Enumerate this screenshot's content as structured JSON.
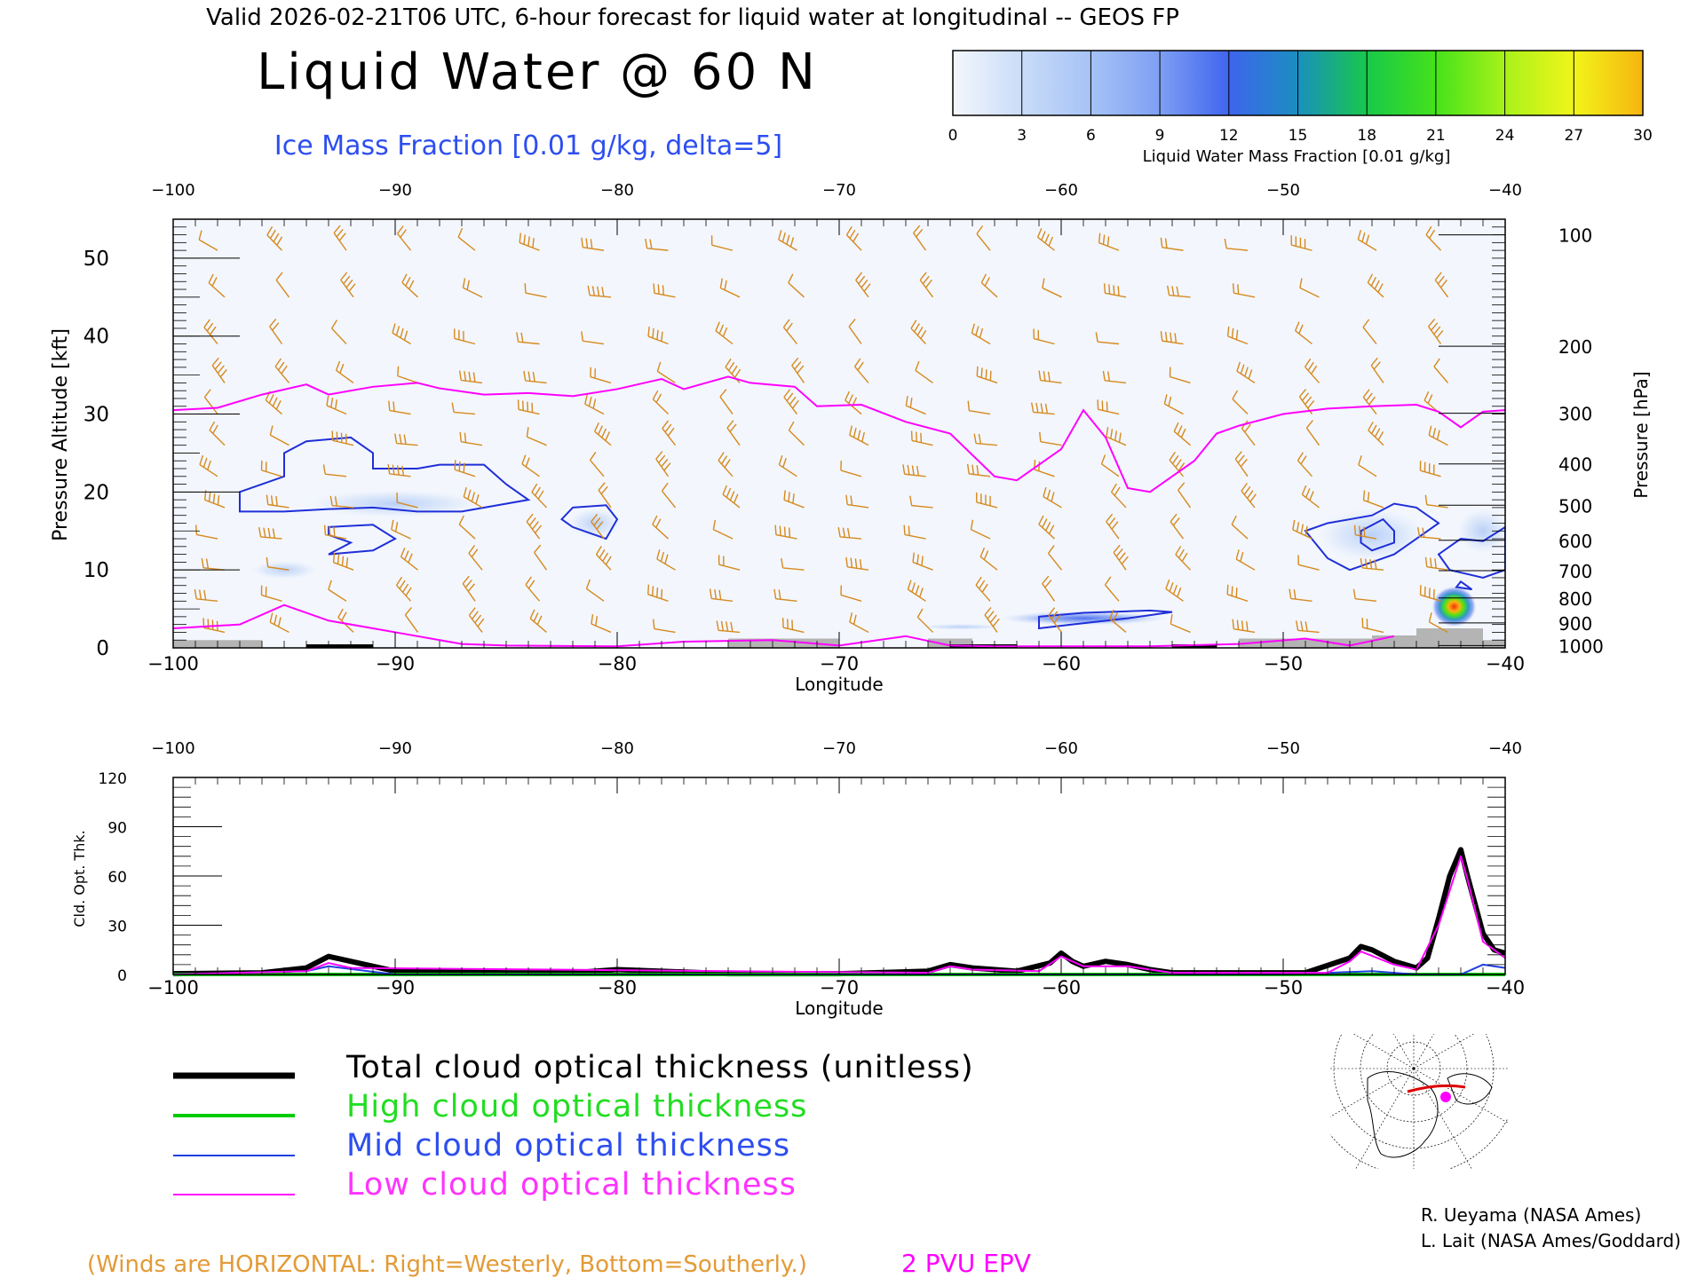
{
  "header": {
    "valid_line": "Valid 2026-02-21T06 UTC, 6-hour forecast for liquid water at longitudinal -- GEOS FP",
    "main_title": "Liquid Water @ 60 N",
    "subtitle": "Ice Mass Fraction [0.01 g/kg, delta=5]"
  },
  "colorbar": {
    "ticks": [
      "0",
      "3",
      "6",
      "9",
      "12",
      "15",
      "18",
      "21",
      "24",
      "27",
      "30"
    ],
    "label": "Liquid Water Mass Fraction [0.01 g/kg]",
    "colors": [
      "#f4f7fd",
      "#c9dcf8",
      "#a6c3f6",
      "#7e9ff3",
      "#3f64ee",
      "#1a8fbf",
      "#18c84a",
      "#45e21a",
      "#a8f21a",
      "#f2f51a",
      "#f7b40f",
      "#f67a0a",
      "#f5300a"
    ]
  },
  "chart_data": [
    {
      "type": "heatmap",
      "title": "Liquid Water @ 60 N",
      "xlabel": "Longitude",
      "ylabel": "Pressure Altitude [kft]",
      "ylabel_right": "Pressure [hPa]",
      "xlim": [
        -100,
        -40
      ],
      "ylim": [
        0,
        55
      ],
      "x_ticks": [
        "-100",
        "-90",
        "-80",
        "-70",
        "-60",
        "-50",
        "-40"
      ],
      "y_ticks": [
        "0",
        "10",
        "20",
        "30",
        "40",
        "50"
      ],
      "pressure_ticks": [
        {
          "label": "100",
          "kft": 53
        },
        {
          "label": "200",
          "kft": 38.7
        },
        {
          "label": "300",
          "kft": 30.1
        },
        {
          "label": "400",
          "kft": 23.6
        },
        {
          "label": "500",
          "kft": 18.3
        },
        {
          "label": "600",
          "kft": 13.8
        },
        {
          "label": "700",
          "kft": 9.9
        },
        {
          "label": "800",
          "kft": 6.4
        },
        {
          "label": "900",
          "kft": 3.2
        },
        {
          "label": "1000",
          "kft": 0.3
        }
      ],
      "epv_2pvu_line": [
        [
          -100,
          30.5
        ],
        [
          -98,
          30.8
        ],
        [
          -96,
          32.5
        ],
        [
          -94,
          33.8
        ],
        [
          -93,
          32.5
        ],
        [
          -91,
          33.5
        ],
        [
          -89,
          34
        ],
        [
          -88,
          33.3
        ],
        [
          -86,
          32.5
        ],
        [
          -84,
          32.7
        ],
        [
          -82,
          32.3
        ],
        [
          -80,
          33.2
        ],
        [
          -78,
          34.5
        ],
        [
          -77,
          33.2
        ],
        [
          -75,
          34.8
        ],
        [
          -74,
          34
        ],
        [
          -72,
          33.5
        ],
        [
          -71,
          31
        ],
        [
          -69,
          31.2
        ],
        [
          -67,
          29
        ],
        [
          -65,
          27.5
        ],
        [
          -63,
          22
        ],
        [
          -62,
          21.5
        ],
        [
          -60,
          25.5
        ],
        [
          -59,
          30.5
        ],
        [
          -58,
          27
        ],
        [
          -57,
          20.5
        ],
        [
          -56,
          20
        ],
        [
          -54,
          24
        ],
        [
          -53,
          27.5
        ],
        [
          -52,
          28.5
        ],
        [
          -50,
          30
        ],
        [
          -48,
          30.7
        ],
        [
          -46,
          31
        ],
        [
          -44,
          31.2
        ],
        [
          -43,
          30.3
        ],
        [
          -42,
          28.3
        ],
        [
          -41,
          30.3
        ],
        [
          -40,
          30.5
        ]
      ],
      "epv_2pvu_low": [
        [
          -100,
          2.5
        ],
        [
          -97,
          3
        ],
        [
          -95,
          5.5
        ],
        [
          -93,
          3.5
        ],
        [
          -91,
          2.5
        ],
        [
          -89,
          1.5
        ],
        [
          -87,
          0.5
        ],
        [
          -85,
          0.3
        ],
        [
          -80,
          0.2
        ],
        [
          -77,
          0.8
        ],
        [
          -73,
          1
        ],
        [
          -70,
          0.3
        ],
        [
          -67,
          1.5
        ],
        [
          -65,
          0.3
        ],
        [
          -63,
          0.2
        ],
        [
          -56,
          0.2
        ],
        [
          -52,
          0.5
        ],
        [
          -49,
          1.2
        ],
        [
          -47,
          0.3
        ],
        [
          -45,
          1.5
        ]
      ],
      "ice_contours": [
        [
          [
            -97,
            20
          ],
          [
            -96,
            21
          ],
          [
            -95,
            22
          ],
          [
            -95,
            25
          ],
          [
            -94,
            26.5
          ],
          [
            -92,
            27
          ],
          [
            -91,
            25
          ],
          [
            -91,
            23
          ],
          [
            -89,
            23
          ],
          [
            -88,
            23.5
          ],
          [
            -86,
            23.5
          ],
          [
            -85,
            21
          ],
          [
            -84,
            19
          ],
          [
            -87,
            17.5
          ],
          [
            -89,
            17.5
          ],
          [
            -91,
            18
          ],
          [
            -93,
            17.8
          ],
          [
            -95,
            17.5
          ],
          [
            -97,
            17.5
          ],
          [
            -97,
            20
          ]
        ],
        [
          [
            -93,
            15.5
          ],
          [
            -91,
            15.8
          ],
          [
            -90,
            14
          ],
          [
            -91,
            12.5
          ],
          [
            -93,
            12
          ],
          [
            -92,
            13.5
          ],
          [
            -93,
            14.5
          ],
          [
            -93,
            15.5
          ]
        ],
        [
          [
            -82,
            18
          ],
          [
            -80.5,
            18.3
          ],
          [
            -80,
            16.5
          ],
          [
            -80.5,
            14
          ],
          [
            -81,
            14.5
          ],
          [
            -82,
            15.5
          ],
          [
            -82.5,
            16.5
          ],
          [
            -82,
            18
          ]
        ],
        [
          [
            -61,
            4
          ],
          [
            -59,
            4.5
          ],
          [
            -56,
            4.8
          ],
          [
            -55,
            4.6
          ],
          [
            -57,
            3.8
          ],
          [
            -59.5,
            3
          ],
          [
            -61,
            2.5
          ],
          [
            -61,
            4
          ]
        ],
        [
          [
            -48,
            16
          ],
          [
            -46,
            17
          ],
          [
            -45,
            18.5
          ],
          [
            -44,
            18
          ],
          [
            -43,
            16
          ],
          [
            -44,
            14
          ],
          [
            -45,
            12
          ],
          [
            -46,
            11
          ],
          [
            -47,
            10
          ],
          [
            -48,
            11.5
          ],
          [
            -49,
            15
          ],
          [
            -48,
            16
          ]
        ],
        [
          [
            -46.5,
            15
          ],
          [
            -45.5,
            16.5
          ],
          [
            -45,
            15
          ],
          [
            -45,
            13.5
          ],
          [
            -46,
            12.5
          ],
          [
            -46.5,
            13.5
          ],
          [
            -46.5,
            15
          ]
        ],
        [
          [
            -42,
            14
          ],
          [
            -41,
            13.7
          ],
          [
            -40,
            15.5
          ],
          [
            -40,
            10
          ],
          [
            -41,
            9
          ],
          [
            -42.5,
            10
          ],
          [
            -43,
            12
          ],
          [
            -42,
            14
          ]
        ],
        [
          [
            -42,
            8.5
          ],
          [
            -41.5,
            7.5
          ],
          [
            -42.2,
            7.8
          ],
          [
            -42,
            8.5
          ]
        ]
      ],
      "liquid_blobs": [
        {
          "lon": -42.3,
          "kft": 5.3,
          "rx": 1.0,
          "ry": 2.6,
          "value": 30
        },
        {
          "lon": -59,
          "kft": 3.8,
          "rx": 3.8,
          "ry": 0.9,
          "value": 9
        },
        {
          "lon": -64.5,
          "kft": 2.7,
          "rx": 2.0,
          "ry": 0.4,
          "value": 5
        },
        {
          "lon": -46,
          "kft": 14.5,
          "rx": 2.5,
          "ry": 3.5,
          "value": 6
        },
        {
          "lon": -90,
          "kft": 18.5,
          "rx": 4,
          "ry": 1.8,
          "value": 4
        },
        {
          "lon": -95,
          "kft": 10,
          "rx": 1.5,
          "ry": 1.2,
          "value": 3
        },
        {
          "lon": -81,
          "kft": 16,
          "rx": 1.2,
          "ry": 2,
          "value": 3
        },
        {
          "lon": -41,
          "kft": 15,
          "rx": 1.2,
          "ry": 3,
          "value": 4
        }
      ],
      "terrain": [
        [
          -100,
          1
        ],
        [
          -96,
          1
        ],
        [
          -96,
          0
        ],
        [
          -75,
          0
        ],
        [
          -75,
          1.2
        ],
        [
          -70,
          1.2
        ],
        [
          -70,
          0
        ],
        [
          -66,
          0
        ],
        [
          -66,
          1.2
        ],
        [
          -64,
          1.2
        ],
        [
          -64,
          0
        ],
        [
          -52,
          0
        ],
        [
          -52,
          1.2
        ],
        [
          -46,
          1.2
        ],
        [
          -46,
          1.6
        ],
        [
          -44,
          1.6
        ],
        [
          -44,
          2.5
        ],
        [
          -41,
          2.5
        ],
        [
          -41,
          1
        ],
        [
          -40,
          1
        ]
      ],
      "legend_note": "(Winds are HORIZONTAL: Right=Westerly, Bottom=Southerly.)",
      "epv_label": "2 PVU EPV"
    },
    {
      "type": "line",
      "xlabel": "Longitude",
      "ylabel": "Cld. Opt. Thk.",
      "xlim": [
        -100,
        -40
      ],
      "ylim": [
        0,
        120
      ],
      "x_ticks": [
        "-100",
        "-90",
        "-80",
        "-70",
        "-60",
        "-50",
        "-40"
      ],
      "y_ticks": [
        "0",
        "30",
        "60",
        "90",
        "120"
      ],
      "series": [
        {
          "name": "Total cloud optical thickness (unitless)",
          "color": "#000000",
          "x": [
            -100,
            -96,
            -94,
            -93,
            -92,
            -90,
            -85,
            -82,
            -80,
            -75,
            -70,
            -66,
            -65,
            -64,
            -62,
            -60.5,
            -60,
            -59.5,
            -59,
            -58,
            -57,
            -56,
            -55,
            -52,
            -49,
            -47,
            -46.5,
            -46,
            -45,
            -44,
            -43.5,
            -43,
            -42.5,
            -42,
            -41.7,
            -41,
            -40.5,
            -40
          ],
          "y": [
            0.5,
            1,
            4,
            11,
            8,
            2,
            1,
            1,
            3,
            0.5,
            0.5,
            2,
            6,
            4,
            2,
            7,
            13,
            8,
            5,
            8,
            6,
            3,
            1,
            1,
            1,
            10,
            17,
            15,
            8,
            4,
            10,
            34,
            60,
            76,
            60,
            25,
            15,
            13
          ]
        },
        {
          "name": "High cloud optical thickness",
          "color": "#00cc00",
          "x": [
            -100,
            -40
          ],
          "y": [
            0,
            0
          ]
        },
        {
          "name": "Mid cloud optical thickness",
          "color": "#1f3fe0",
          "x": [
            -100,
            -94,
            -93,
            -90,
            -50,
            -46,
            -44,
            -42,
            -41,
            -40
          ],
          "y": [
            0,
            2,
            5,
            0,
            0,
            2,
            0,
            0,
            6,
            4
          ]
        },
        {
          "name": "Low cloud optical thickness",
          "color": "#ff00ff",
          "x": [
            -100,
            -94,
            -93,
            -92,
            -66,
            -65,
            -64,
            -61,
            -60,
            -59,
            -57,
            -55,
            -48,
            -47,
            -46.5,
            -45,
            -44,
            -43,
            -42,
            -41.7,
            -41,
            -40
          ],
          "y": [
            0,
            2,
            7,
            4,
            1,
            5,
            3,
            2,
            11,
            5,
            5,
            1,
            1,
            8,
            14,
            6,
            3,
            30,
            72,
            58,
            20,
            10
          ]
        }
      ]
    }
  ],
  "legend": {
    "items": [
      {
        "label": "Total cloud optical thickness (unitless)",
        "color": "#000000"
      },
      {
        "label": "High cloud optical thickness",
        "color": "#00cc00"
      },
      {
        "label": "Mid cloud optical thickness",
        "color": "#1f3fe0"
      },
      {
        "label": "Low cloud optical thickness",
        "color": "#ff00ff"
      }
    ]
  },
  "credits": {
    "line1": "R. Ueyama (NASA Ames)",
    "line2": "L. Lait (NASA Ames/Goddard)"
  },
  "colors": {
    "wind": "#d68a1e",
    "epv": "#ff00ff",
    "ice": "#1f2fd8",
    "terrain": "#b4b4b4",
    "note": "#e39a36"
  }
}
